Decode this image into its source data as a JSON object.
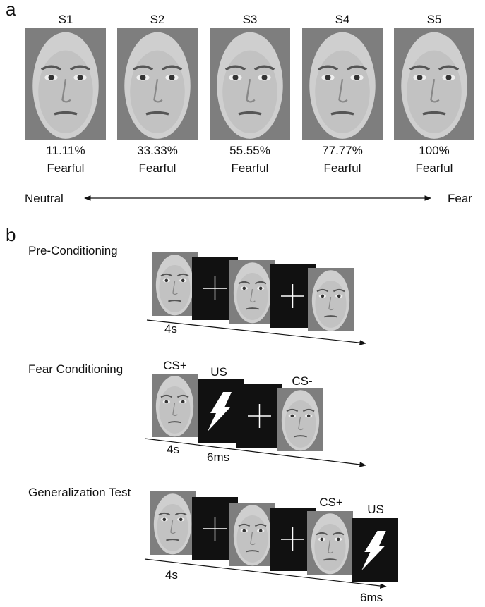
{
  "panel_a": {
    "label": "a",
    "stimuli": [
      {
        "name": "S1",
        "percent": "11.11%",
        "caption": "Fearful"
      },
      {
        "name": "S2",
        "percent": "33.33%",
        "caption": "Fearful"
      },
      {
        "name": "S3",
        "percent": "55.55%",
        "caption": "Fearful"
      },
      {
        "name": "S4",
        "percent": "77.77%",
        "caption": "Fearful"
      },
      {
        "name": "S5",
        "percent": "100%",
        "caption": "Fearful"
      }
    ],
    "axis_left": "Neutral",
    "axis_right": "Fear"
  },
  "panel_b": {
    "label": "b",
    "rows": [
      {
        "title": "Pre-Conditioning",
        "durations": [
          "4s"
        ]
      },
      {
        "title": "Fear Conditioning",
        "labels": [
          "CS+",
          "US",
          "CS-"
        ],
        "durations": [
          "4s",
          "6ms"
        ]
      },
      {
        "title": "Generalization Test",
        "labels": [
          "CS+",
          "US"
        ],
        "durations": [
          "4s",
          "6ms"
        ]
      }
    ]
  }
}
